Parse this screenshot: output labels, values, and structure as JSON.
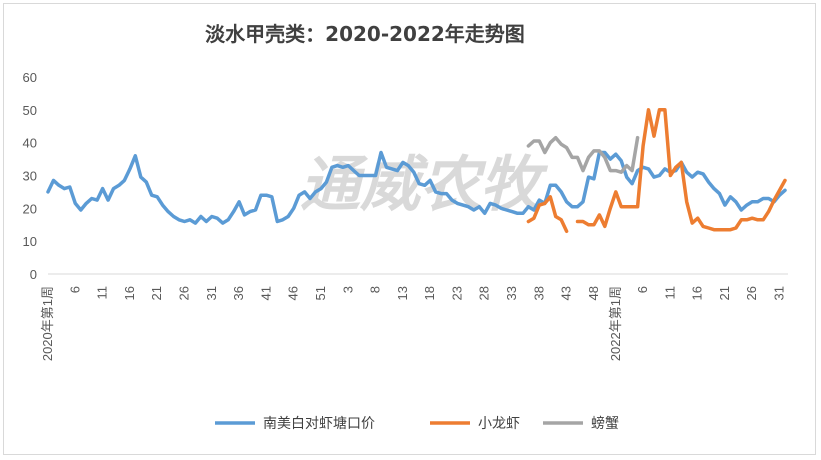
{
  "watermark": "通威农牧",
  "chart_data": {
    "type": "line",
    "title": "淡水甲壳类：2020-2022年走势图",
    "xlabel": "",
    "ylabel": "",
    "ylim": [
      0,
      60
    ],
    "y_ticks": [
      0,
      10,
      20,
      30,
      40,
      50,
      60
    ],
    "grid": false,
    "legend_position": "bottom",
    "x_tick_labels": [
      {
        "i": 0,
        "label": "2020年第1周"
      },
      {
        "i": 5,
        "label": "6"
      },
      {
        "i": 10,
        "label": "11"
      },
      {
        "i": 15,
        "label": "16"
      },
      {
        "i": 20,
        "label": "21"
      },
      {
        "i": 25,
        "label": "26"
      },
      {
        "i": 30,
        "label": "31"
      },
      {
        "i": 35,
        "label": "36"
      },
      {
        "i": 40,
        "label": "41"
      },
      {
        "i": 45,
        "label": "46"
      },
      {
        "i": 50,
        "label": "51"
      },
      {
        "i": 55,
        "label": "3"
      },
      {
        "i": 60,
        "label": "8"
      },
      {
        "i": 65,
        "label": "13"
      },
      {
        "i": 70,
        "label": "18"
      },
      {
        "i": 75,
        "label": "23"
      },
      {
        "i": 80,
        "label": "28"
      },
      {
        "i": 85,
        "label": "33"
      },
      {
        "i": 90,
        "label": "38"
      },
      {
        "i": 95,
        "label": "43"
      },
      {
        "i": 100,
        "label": "48"
      },
      {
        "i": 104,
        "label": "2022年第1周"
      },
      {
        "i": 109,
        "label": "6"
      },
      {
        "i": 114,
        "label": "11"
      },
      {
        "i": 119,
        "label": "16"
      },
      {
        "i": 124,
        "label": "21"
      },
      {
        "i": 129,
        "label": "26"
      },
      {
        "i": 134,
        "label": "31"
      }
    ],
    "series": [
      {
        "name": "南美白对虾塘口价",
        "color": "#5b9bd5",
        "start_index": 0,
        "values": [
          25,
          28.5,
          27,
          26,
          26.5,
          21.5,
          19.5,
          21.5,
          23,
          22.5,
          26,
          22.5,
          26,
          27,
          28.5,
          32,
          36,
          29.5,
          28,
          24,
          23.5,
          21,
          19,
          17.5,
          16.5,
          16,
          16.5,
          15.5,
          17.5,
          16,
          17.5,
          17,
          15.5,
          16.5,
          19,
          22,
          18,
          19,
          19.5,
          24,
          24,
          23.5,
          16,
          16.5,
          17.5,
          20,
          24,
          25,
          23,
          25,
          26,
          28,
          32.5,
          33,
          32.5,
          33,
          31.5,
          30,
          30,
          30,
          30,
          37,
          32.5,
          32,
          31.5,
          34,
          33,
          31,
          27.5,
          27,
          28.5,
          25,
          24.5,
          24.5,
          22.5,
          21.5,
          21,
          20.5,
          19.5,
          20.5,
          18.5,
          21.5,
          21,
          20,
          19.5,
          19,
          18.5,
          18.5,
          20.5,
          19.5,
          22.5,
          21.5,
          27,
          27,
          25,
          22,
          20.5,
          20.5,
          22,
          29.5,
          29,
          37,
          37,
          35,
          36.5,
          34.5,
          29.5,
          27.5,
          31.5,
          32.5,
          32,
          29.5,
          30,
          32,
          31,
          31.5,
          34,
          31,
          29.5,
          31,
          30.5,
          28,
          26,
          24.5,
          21,
          23.5,
          22,
          19.5,
          21,
          22,
          22,
          23,
          23,
          22,
          24,
          25.5
        ]
      },
      {
        "name": "小龙虾",
        "color": "#ed7d31",
        "start_index": 88,
        "values": [
          16,
          17,
          21,
          21.5,
          23.5,
          17.5,
          16.5,
          13,
          null,
          16,
          16,
          15,
          15,
          18,
          14.5,
          20,
          25,
          20.5,
          20.5,
          20.5,
          20.5,
          39,
          50,
          42,
          50,
          50,
          30,
          32.5,
          34,
          22,
          15.5,
          17,
          14.5,
          14,
          13.5,
          13.5,
          13.5,
          13.5,
          14,
          16.5,
          16.5,
          17,
          16.5,
          16.5,
          19,
          22.5,
          25.5,
          28.5
        ]
      },
      {
        "name": "螃蟹",
        "color": "#a5a5a5",
        "start_index": 88,
        "values": [
          39,
          40.5,
          40.5,
          37,
          40,
          41.5,
          39.5,
          38.5,
          35.5,
          35.5,
          31.5,
          35.5,
          37.5,
          37.5,
          35.5,
          31.5,
          31.5,
          31,
          33,
          31.5,
          41.5
        ]
      }
    ]
  }
}
